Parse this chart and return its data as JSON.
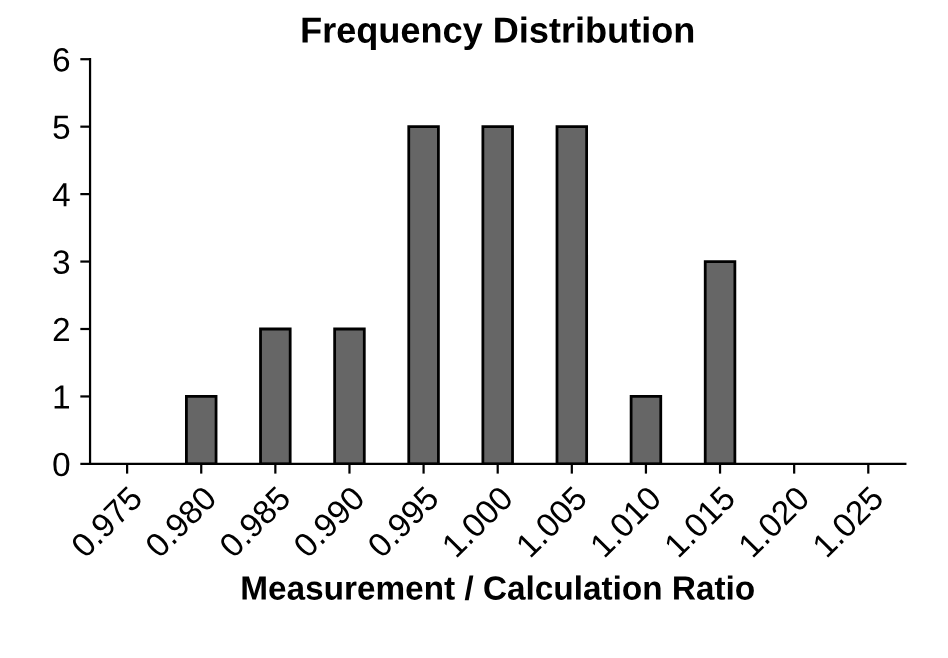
{
  "chart_data": {
    "type": "bar",
    "title": "Frequency Distribution",
    "xlabel": "Measurement / Calculation Ratio",
    "categories": [
      "0.975",
      "0.980",
      "0.985",
      "0.990",
      "0.995",
      "1.000",
      "1.005",
      "1.010",
      "1.015",
      "1.020",
      "1.025"
    ],
    "values": [
      0,
      1,
      2,
      2,
      5,
      5,
      5,
      1,
      3,
      0,
      0
    ],
    "color": "#666666",
    "ylim": [
      0,
      6
    ],
    "yticks": [
      0,
      1,
      2,
      3,
      4,
      5,
      6
    ],
    "grid": false,
    "legend": false
  }
}
